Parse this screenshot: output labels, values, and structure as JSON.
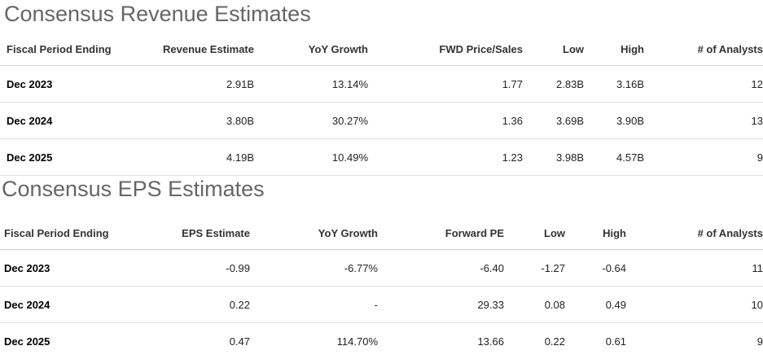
{
  "revenue": {
    "title": "Consensus Revenue Estimates",
    "headers": [
      "Fiscal Period Ending",
      "Revenue Estimate",
      "YoY Growth",
      "FWD Price/Sales",
      "Low",
      "High",
      "# of Analysts"
    ],
    "rows": [
      [
        "Dec 2023",
        "2.91B",
        "13.14%",
        "1.77",
        "2.83B",
        "3.16B",
        "12"
      ],
      [
        "Dec 2024",
        "3.80B",
        "30.27%",
        "1.36",
        "3.69B",
        "3.90B",
        "13"
      ],
      [
        "Dec 2025",
        "4.19B",
        "10.49%",
        "1.23",
        "3.98B",
        "4.57B",
        "9"
      ]
    ]
  },
  "eps": {
    "title": "Consensus EPS Estimates",
    "headers": [
      "Fiscal Period Ending",
      "EPS Estimate",
      "YoY Growth",
      "Forward PE",
      "Low",
      "High",
      "# of Analysts"
    ],
    "rows": [
      [
        "Dec 2023",
        "-0.99",
        "-6.77%",
        "-6.40",
        "-1.27",
        "-0.64",
        "11"
      ],
      [
        "Dec 2024",
        "0.22",
        "-",
        "29.33",
        "0.08",
        "0.49",
        "10"
      ],
      [
        "Dec 2025",
        "0.47",
        "114.70%",
        "13.66",
        "0.22",
        "0.61",
        "9"
      ]
    ]
  }
}
